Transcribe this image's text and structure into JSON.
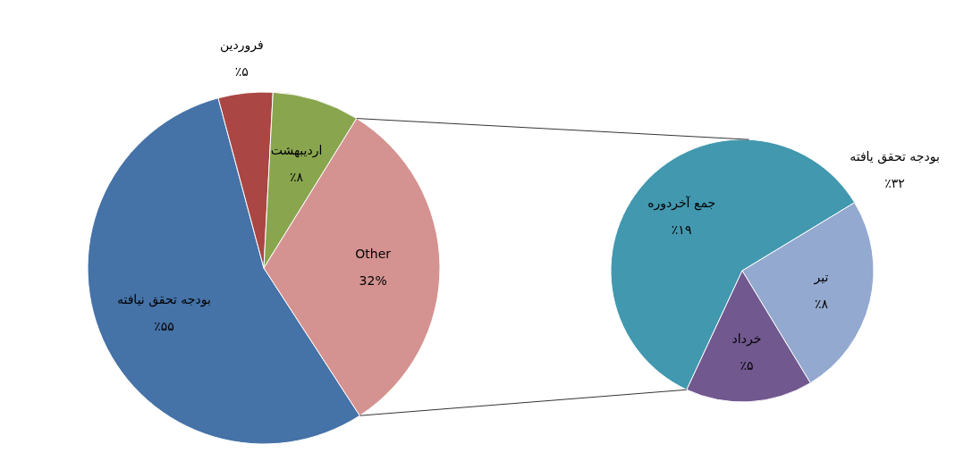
{
  "chart_data": [
    {
      "type": "pie",
      "categories": [
        "بودجه تحقق نیافته",
        "فروردین",
        "اردیبهشت",
        "Other"
      ],
      "values": [
        55,
        5,
        8,
        32
      ],
      "colors": [
        "#4572a7",
        "#aa4643",
        "#89a54e",
        "#d49391"
      ],
      "value_labels": [
        "٪۵۵",
        "٪۵",
        "٪۸",
        "32%"
      ]
    },
    {
      "type": "pie",
      "categories": [
        "جمع آخردوره",
        "تیر",
        "خرداد"
      ],
      "values": [
        19,
        8,
        5
      ],
      "colors": [
        "#4198af",
        "#93a9cf",
        "#71588f"
      ],
      "value_labels": [
        "٪۱۹",
        "٪۸",
        "٪۵"
      ],
      "annotations": [
        "بودجه تحقق یافته",
        "٪۳۲"
      ]
    }
  ]
}
